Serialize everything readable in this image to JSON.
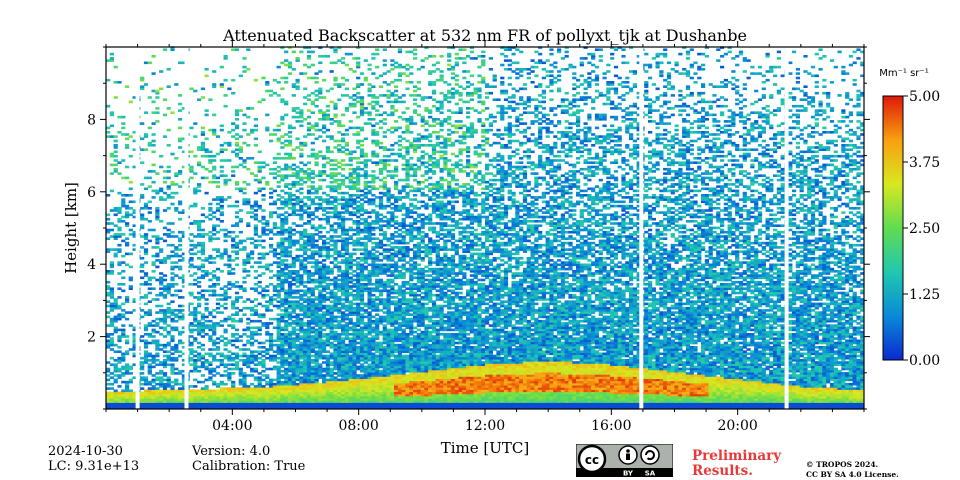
{
  "chart_data": {
    "type": "heatmap",
    "title": "Attenuated Backscatter at 532 nm FR of pollyxt_tjk at Dushanbe",
    "xlabel": "Time [UTC]",
    "ylabel": "Height [km]",
    "xlim": [
      0,
      24
    ],
    "ylim": [
      0,
      10
    ],
    "x_ticks": [
      {
        "value": 4,
        "label": "04:00"
      },
      {
        "value": 8,
        "label": "08:00"
      },
      {
        "value": 12,
        "label": "12:00"
      },
      {
        "value": 16,
        "label": "16:00"
      },
      {
        "value": 20,
        "label": "20:00"
      }
    ],
    "y_ticks": [
      {
        "value": 2,
        "label": "2"
      },
      {
        "value": 4,
        "label": "4"
      },
      {
        "value": 6,
        "label": "6"
      },
      {
        "value": 8,
        "label": "8"
      }
    ],
    "colorbar": {
      "unit_label": "Mm⁻¹ sr⁻¹",
      "range": [
        0,
        5
      ],
      "ticks": [
        "0.00",
        "1.25",
        "2.50",
        "3.75",
        "5.00"
      ],
      "colormap": [
        "#0a2ad0",
        "#0a8ad8",
        "#20c8b0",
        "#60dc50",
        "#d8e820",
        "#f8a010",
        "#e01808"
      ]
    },
    "data_gaps_hours": [
      1.0,
      2.55,
      16.95,
      21.55
    ],
    "boundary_layer_top_km": [
      [
        0,
        0.45
      ],
      [
        2,
        0.5
      ],
      [
        4,
        0.55
      ],
      [
        5.3,
        0.6
      ],
      [
        8,
        0.8
      ],
      [
        10,
        1.0
      ],
      [
        12,
        1.2
      ],
      [
        14,
        1.3
      ],
      [
        16,
        1.2
      ],
      [
        18,
        1.0
      ],
      [
        20,
        0.8
      ],
      [
        22,
        0.6
      ],
      [
        24,
        0.5
      ]
    ]
  },
  "footer": {
    "date": "2024-10-30",
    "lc": "LC: 9.31e+13",
    "version": "Version: 4.0",
    "calibration": "Calibration: True",
    "preliminary_line1": "Preliminary",
    "preliminary_line2": "Results.",
    "license_line1": "© TROPOS 2024.",
    "license_line2": "CC BY SA 4.0 License.",
    "badge_text": "cc by sa"
  }
}
